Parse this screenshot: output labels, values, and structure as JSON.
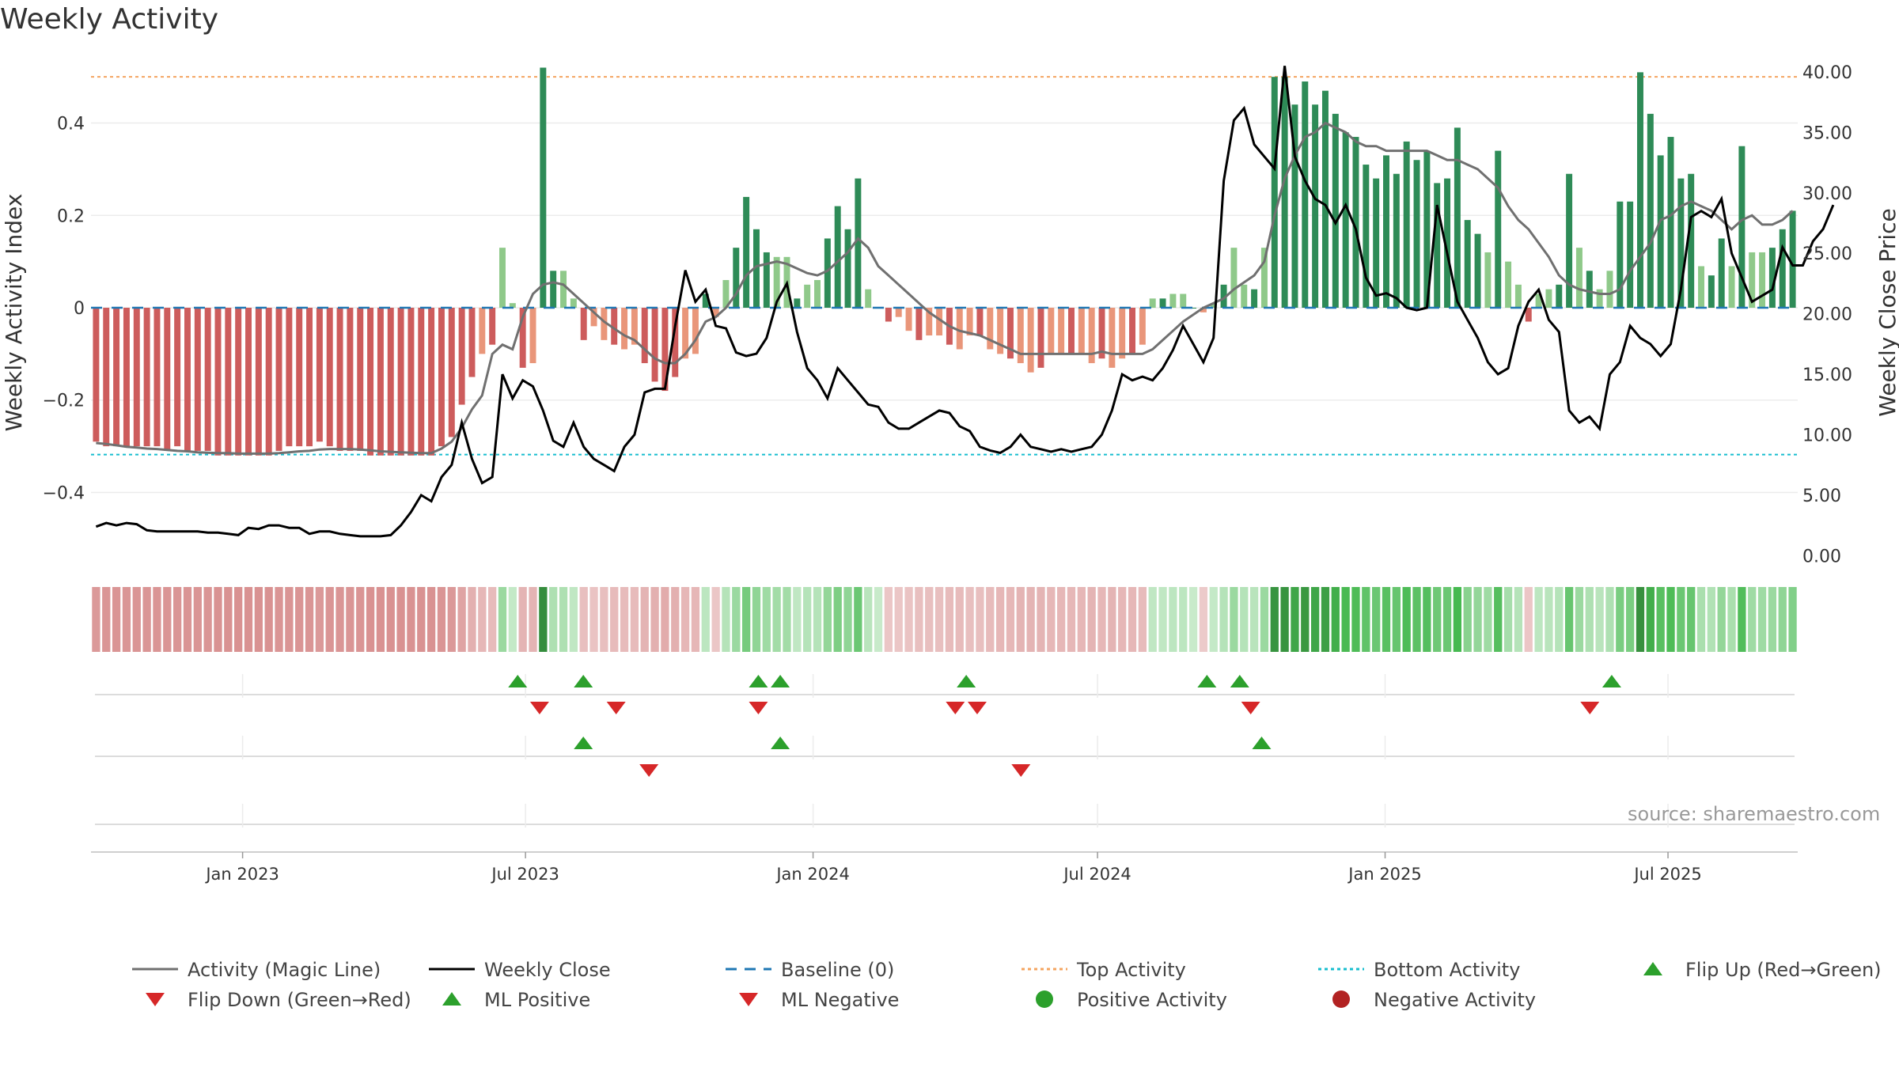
{
  "title": "Weekly Activity",
  "source": "source: sharemaestro.com",
  "chart_data": {
    "type": "bar",
    "title": "Weekly Activity",
    "ylabel": "Weekly Activity Index",
    "y2label": "Weekly Close Price",
    "ylim": [
      -0.55,
      0.55
    ],
    "y2lim": [
      -0.5,
      41.5
    ],
    "yticks": [
      0.4,
      0.2,
      0,
      -0.2,
      -0.4
    ],
    "yticklabels": [
      "0.4",
      "0.2",
      "0",
      "−0.2",
      "−0.4"
    ],
    "y2ticks": [
      40,
      35,
      30,
      25,
      20,
      15,
      10,
      5,
      0
    ],
    "y2ticklabels": [
      "40.00",
      "35.00",
      "30.00",
      "25.00",
      "20.00",
      "15.00",
      "10.00",
      "5.00",
      "0.00"
    ],
    "date_range": [
      "2022-09-26",
      "2025-09-22"
    ],
    "x_tick_labels": [
      "Jan 2023",
      "Jul 2023",
      "Jan 2024",
      "Jul 2024",
      "Jan 2025",
      "Jul 2025"
    ],
    "top_activity": 0.5,
    "bottom_activity": -0.318,
    "baseline": 0,
    "weekly_activity": [
      -0.29,
      -0.3,
      -0.3,
      -0.3,
      -0.3,
      -0.3,
      -0.3,
      -0.31,
      -0.3,
      -0.31,
      -0.31,
      -0.31,
      -0.32,
      -0.32,
      -0.32,
      -0.32,
      -0.32,
      -0.32,
      -0.31,
      -0.3,
      -0.3,
      -0.3,
      -0.29,
      -0.3,
      -0.31,
      -0.31,
      -0.31,
      -0.32,
      -0.32,
      -0.32,
      -0.32,
      -0.32,
      -0.32,
      -0.32,
      -0.3,
      -0.28,
      -0.21,
      -0.15,
      -0.1,
      -0.08,
      0.13,
      0.01,
      -0.13,
      -0.12,
      0.52,
      0.08,
      0.08,
      0.02,
      -0.07,
      -0.04,
      -0.07,
      -0.08,
      -0.09,
      -0.08,
      -0.12,
      -0.16,
      -0.18,
      -0.15,
      -0.11,
      -0.1,
      0.03,
      -0.02,
      0.06,
      0.13,
      0.24,
      0.17,
      0.12,
      0.11,
      0.11,
      0.02,
      0.05,
      0.06,
      0.15,
      0.22,
      0.17,
      0.28,
      0.04,
      0,
      -0.03,
      -0.02,
      -0.05,
      -0.07,
      -0.06,
      -0.06,
      -0.08,
      -0.09,
      -0.06,
      -0.06,
      -0.09,
      -0.1,
      -0.11,
      -0.12,
      -0.14,
      -0.13,
      -0.1,
      -0.1,
      -0.1,
      -0.1,
      -0.12,
      -0.11,
      -0.13,
      -0.11,
      -0.1,
      -0.08,
      0.02,
      0.02,
      0.03,
      0.03,
      0,
      -0.01,
      0.01,
      0.05,
      0.13,
      0.05,
      0.04,
      0.13,
      0.5,
      0.5,
      0.44,
      0.49,
      0.44,
      0.47,
      0.42,
      0.38,
      0.37,
      0.31,
      0.28,
      0.33,
      0.29,
      0.36,
      0.32,
      0.34,
      0.27,
      0.28,
      0.39,
      0.19,
      0.16,
      0.12,
      0.34,
      0.1,
      0.05,
      -0.03,
      0.03,
      0.04,
      0.05,
      0.29,
      0.13,
      0.08,
      0.04,
      0.08,
      0.23,
      0.23,
      0.51,
      0.42,
      0.33,
      0.37,
      0.28,
      0.29,
      0.09,
      0.07,
      0.15,
      0.09,
      0.35,
      0.12,
      0.12,
      0.13,
      0.17,
      0.21
    ],
    "activity_magic_line": [
      -0.293,
      -0.295,
      -0.298,
      -0.301,
      -0.303,
      -0.305,
      -0.306,
      -0.308,
      -0.31,
      -0.311,
      -0.313,
      -0.314,
      -0.315,
      -0.315,
      -0.316,
      -0.316,
      -0.316,
      -0.316,
      -0.315,
      -0.313,
      -0.311,
      -0.31,
      -0.307,
      -0.306,
      -0.306,
      -0.306,
      -0.307,
      -0.309,
      -0.311,
      -0.312,
      -0.313,
      -0.314,
      -0.315,
      -0.315,
      -0.305,
      -0.29,
      -0.26,
      -0.22,
      -0.19,
      -0.1,
      -0.08,
      -0.09,
      -0.02,
      0.03,
      0.05,
      0.055,
      0.05,
      0.03,
      0.01,
      -0.01,
      -0.03,
      -0.045,
      -0.06,
      -0.07,
      -0.09,
      -0.11,
      -0.12,
      -0.12,
      -0.1,
      -0.07,
      -0.03,
      -0.02,
      0,
      0.03,
      0.07,
      0.09,
      0.095,
      0.1,
      0.095,
      0.085,
      0.075,
      0.07,
      0.08,
      0.1,
      0.12,
      0.15,
      0.13,
      0.09,
      0.07,
      0.05,
      0.03,
      0.01,
      -0.01,
      -0.025,
      -0.04,
      -0.05,
      -0.055,
      -0.06,
      -0.07,
      -0.08,
      -0.09,
      -0.1,
      -0.1,
      -0.1,
      -0.1,
      -0.1,
      -0.1,
      -0.1,
      -0.1,
      -0.095,
      -0.1,
      -0.1,
      -0.1,
      -0.1,
      -0.09,
      -0.07,
      -0.05,
      -0.03,
      -0.015,
      0,
      0.01,
      0.02,
      0.04,
      0.055,
      0.07,
      0.1,
      0.2,
      0.28,
      0.33,
      0.37,
      0.38,
      0.4,
      0.39,
      0.38,
      0.36,
      0.35,
      0.35,
      0.34,
      0.34,
      0.34,
      0.34,
      0.34,
      0.33,
      0.32,
      0.32,
      0.31,
      0.3,
      0.28,
      0.26,
      0.22,
      0.19,
      0.17,
      0.14,
      0.11,
      0.07,
      0.05,
      0.04,
      0.035,
      0.03,
      0.03,
      0.04,
      0.08,
      0.11,
      0.14,
      0.19,
      0.2,
      0.22,
      0.23,
      0.22,
      0.21,
      0.19,
      0.17,
      0.19,
      0.2,
      0.18,
      0.18,
      0.19,
      0.21
    ],
    "weekly_close": [
      2.4,
      2.7,
      2.5,
      2.7,
      2.6,
      2.1,
      2,
      2,
      2,
      2,
      2,
      1.9,
      1.9,
      1.8,
      1.7,
      2.3,
      2.2,
      2.5,
      2.5,
      2.3,
      2.3,
      1.8,
      2,
      2,
      1.8,
      1.7,
      1.6,
      1.6,
      1.6,
      1.7,
      2.5,
      3.6,
      5,
      4.5,
      6.5,
      7.5,
      11,
      8,
      6,
      6.5,
      15,
      13,
      14.5,
      14,
      12,
      9.5,
      9,
      11,
      9,
      8,
      7.5,
      7,
      9,
      10,
      13.5,
      13.8,
      13.8,
      19,
      23.6,
      21,
      22,
      19,
      18.8,
      16.8,
      16.5,
      16.7,
      18,
      21,
      22.5,
      18.5,
      15.5,
      14.5,
      13,
      15.5,
      14.5,
      13.5,
      12.5,
      12.3,
      11,
      10.5,
      10.5,
      11,
      11.5,
      12,
      11.8,
      10.7,
      10.3,
      9,
      8.7,
      8.5,
      9,
      10,
      9,
      8.8,
      8.6,
      8.8,
      8.6,
      8.8,
      9,
      10,
      12,
      15,
      14.5,
      14.8,
      14.5,
      15.5,
      17,
      19,
      17.5,
      16,
      18,
      31,
      36,
      37,
      34,
      33,
      32,
      40.5,
      33,
      31,
      29.5,
      29,
      27.5,
      29,
      27,
      23,
      21.5,
      21.7,
      21.3,
      20.5,
      20.3,
      20.5,
      29,
      25,
      21,
      19.5,
      18,
      16,
      15,
      15.5,
      19,
      21,
      22,
      19.5,
      18.5,
      12,
      11,
      11.5,
      10.5,
      15,
      16,
      19,
      18,
      17.5,
      16.5,
      17.5,
      22,
      28,
      28.5,
      28,
      29.5,
      25,
      23,
      21,
      21.5,
      22,
      25.5,
      24,
      24,
      26,
      27,
      29
    ],
    "series": [
      {
        "name": "Activity (Magic Line)",
        "color": "#707070"
      },
      {
        "name": "Weekly Close",
        "color": "#000000"
      },
      {
        "name": "Baseline (0)",
        "color": "#1f77b4"
      },
      {
        "name": "Top Activity",
        "color": "#f4a460"
      },
      {
        "name": "Bottom Activity",
        "color": "#17becf"
      }
    ],
    "flip_up_dates": [
      "2023-06-26",
      "2023-08-07",
      "2023-11-27",
      "2023-12-11",
      "2024-04-08",
      "2024-09-09",
      "2024-09-30",
      "2025-05-26"
    ],
    "flip_down_dates": [
      "2023-07-10",
      "2023-08-28",
      "2023-11-27",
      "2024-04-01",
      "2024-04-15",
      "2024-10-07",
      "2025-05-12"
    ],
    "ml_positive_dates": [
      "2023-08-07",
      "2023-12-11",
      "2024-10-14"
    ],
    "ml_negative_dates": [
      "2023-09-18",
      "2024-05-13"
    ],
    "colors": {
      "strong_pos": "#2e8b57",
      "weak_pos": "#8fc98a",
      "strong_neg": "#cd5c5c",
      "weak_neg": "#e9967a",
      "flip_up": "#2ca02c",
      "flip_down": "#d62728",
      "pos_dot": "#2ca02c",
      "neg_dot": "#b22222"
    }
  },
  "legend": [
    {
      "label": "Activity (Magic Line)",
      "type": "line",
      "color": "#707070",
      "dash": "none"
    },
    {
      "label": "Weekly Close",
      "type": "line",
      "color": "#000000",
      "dash": "none"
    },
    {
      "label": "Baseline (0)",
      "type": "line",
      "color": "#1f77b4",
      "dash": "dash"
    },
    {
      "label": "Top Activity",
      "type": "line",
      "color": "#f4a460",
      "dash": "dot"
    },
    {
      "label": "Bottom Activity",
      "type": "line",
      "color": "#17becf",
      "dash": "dot"
    },
    {
      "label": "Flip Up (Red→Green)",
      "type": "up",
      "color": "#2ca02c",
      "dash": "none"
    },
    {
      "label": "Flip Down (Green→Red)",
      "type": "down",
      "color": "#d62728",
      "dash": "none"
    },
    {
      "label": "ML Positive",
      "type": "up",
      "color": "#2ca02c",
      "dash": "none"
    },
    {
      "label": "ML Negative",
      "type": "down",
      "color": "#d62728",
      "dash": "none"
    },
    {
      "label": "Positive Activity",
      "type": "dot",
      "color": "#2ca02c",
      "dash": "none"
    },
    {
      "label": "Negative Activity",
      "type": "dot",
      "color": "#b22222",
      "dash": "none"
    }
  ]
}
